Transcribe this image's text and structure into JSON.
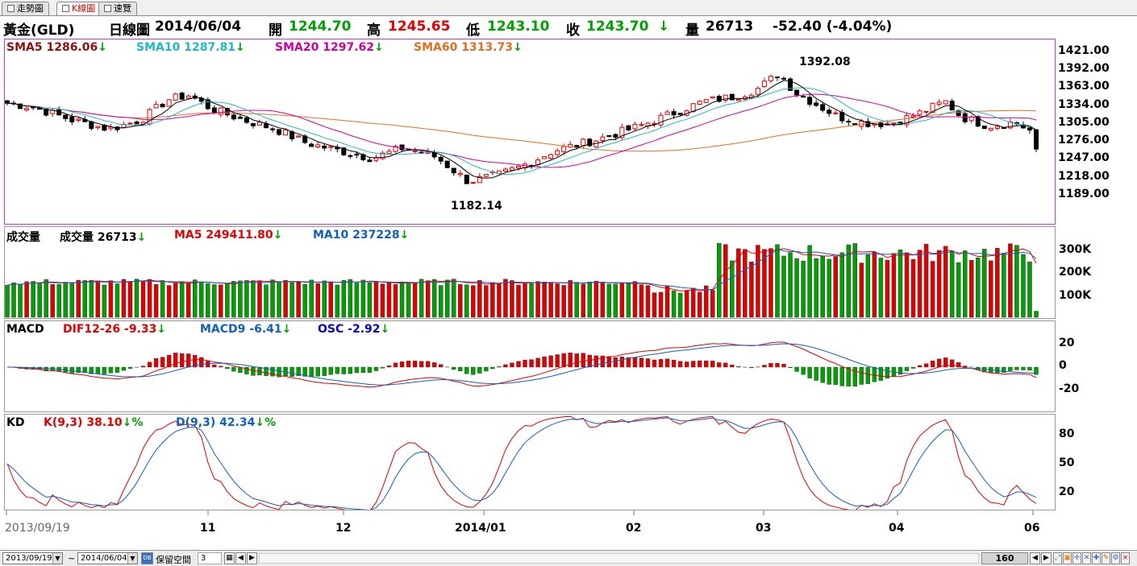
{
  "tabs": [
    {
      "label": "走勢圖"
    },
    {
      "label": "K線圖"
    },
    {
      "label": "速覽"
    }
  ],
  "quote": {
    "name": "黃金(GLD)",
    "period": "日線圖",
    "date": "2014/06/04",
    "open_label": "開",
    "open": "1244.70",
    "high_label": "高",
    "high": "1245.65",
    "low_label": "低",
    "low": "1243.10",
    "close_label": "收",
    "close": "1243.70",
    "close_arrow": "↓",
    "vol_label": "量",
    "volume": "26713",
    "change": "-52.40 (-4.04%)"
  },
  "colors": {
    "up": "#e00000",
    "down": "#00a000",
    "sma5": "#000000",
    "sma10": "#20b8c8",
    "sma20": "#d000a0",
    "sma60": "#e07020",
    "ma5v": "#e00000",
    "ma10v": "#1060c0",
    "dif": "#e00000",
    "macd": "#1060c0",
    "k": "#e00000",
    "d": "#1060c0",
    "frame": "#c040c0"
  },
  "price_panel": {
    "sma5": {
      "label": "SMA5",
      "value": "1286.06",
      "arrow": "↓"
    },
    "sma10": {
      "label": "SMA10",
      "value": "1287.81",
      "arrow": "↓"
    },
    "sma20": {
      "label": "SMA20",
      "value": "1297.62",
      "arrow": "↓"
    },
    "sma60": {
      "label": "SMA60",
      "value": "1313.73",
      "arrow": "↓"
    },
    "high_mark": "1392.08",
    "low_mark": "1182.14",
    "y_ticks": [
      "1421.00",
      "1392.00",
      "1363.00",
      "1334.00",
      "1305.00",
      "1276.00",
      "1247.00",
      "1218.00",
      "1189.00"
    ]
  },
  "volume_panel": {
    "title": "成交量",
    "vol_label": "成交量",
    "vol_value": "26713",
    "vol_arrow": "↓",
    "ma5_label": "MA5",
    "ma5_value": "249411.80",
    "ma5_arrow": "↓",
    "ma10_label": "MA10",
    "ma10_value": "237228",
    "ma10_arrow": "↓",
    "y_ticks": [
      "300K",
      "200K",
      "100K"
    ]
  },
  "macd_panel": {
    "title": "MACD",
    "dif_label": "DIF12-26",
    "dif_value": "-9.33",
    "dif_arrow": "↓",
    "macd_label": "MACD9",
    "macd_value": "-6.41",
    "macd_arrow": "↓",
    "osc_label": "OSC",
    "osc_value": "-2.92",
    "osc_arrow": "↓",
    "y_ticks": [
      "20",
      "0",
      "-20"
    ]
  },
  "kd_panel": {
    "title": "KD",
    "k_label": "K(9,3)",
    "k_value": "38.10",
    "k_arrow": "↓%",
    "d_label": "D(9,3)",
    "d_value": "42.34",
    "d_arrow": "↓%",
    "y_ticks": [
      "80",
      "50",
      "20"
    ]
  },
  "x_axis": [
    "2013/09/19",
    "11",
    "12",
    "2014/01",
    "02",
    "03",
    "04",
    "06"
  ],
  "bottom": {
    "start_date": "2013/09/19",
    "tilde": "~",
    "end_date": "2014/06/04",
    "keep_space": "保留空間",
    "keep_value": "3",
    "count": "160"
  }
}
